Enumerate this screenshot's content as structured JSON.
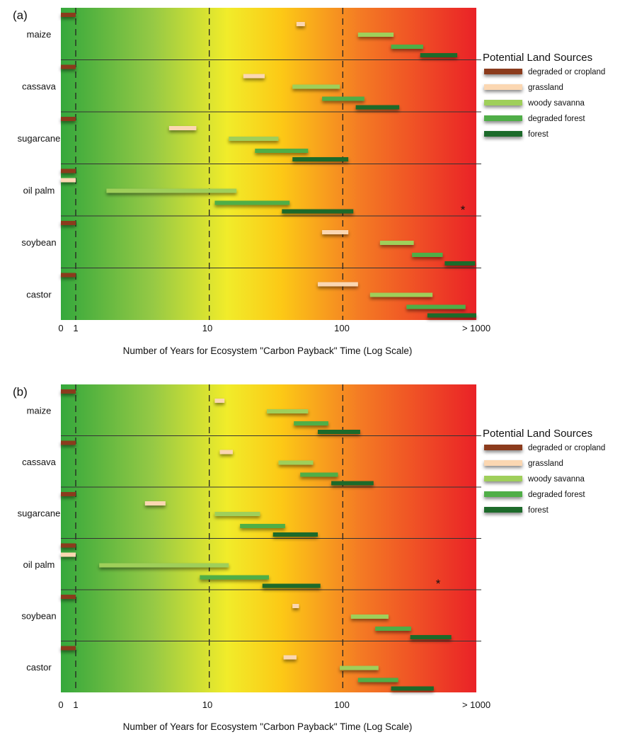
{
  "legend": {
    "title": "Potential Land Sources",
    "items": [
      {
        "label": "degraded or cropland",
        "color": "#8b3a1e"
      },
      {
        "label": "grassland",
        "color": "#fbd7b2"
      },
      {
        "label": "woody savanna",
        "color": "#9fcf5a"
      },
      {
        "label": "degraded forest",
        "color": "#4fae47"
      },
      {
        "label": "forest",
        "color": "#1e6b2a"
      }
    ]
  },
  "chart_data": [
    {
      "type": "bar",
      "panel_label": "(a)",
      "xlabel": "Number of Years for Ecosystem \"Carbon Payback\" Time (Log Scale)",
      "ylabel": "",
      "x_scale": "log",
      "x_ticks": [
        "0",
        "1",
        "10",
        "100",
        "> 1000"
      ],
      "dashed_gridlines_at": [
        1,
        10,
        100
      ],
      "categories": [
        "maize",
        "cassava",
        "sugarcane",
        "oil palm",
        "soybean",
        "castor"
      ],
      "series": [
        {
          "name": "degraded or cropland",
          "ranges": [
            [
              0,
              1
            ],
            [
              0,
              1
            ],
            [
              0,
              1
            ],
            [
              0,
              1
            ],
            [
              0,
              1
            ],
            [
              0,
              1
            ]
          ]
        },
        {
          "name": "grassland",
          "ranges": [
            [
              45,
              52
            ],
            [
              18,
              26
            ],
            [
              5,
              8
            ],
            [
              0,
              1
            ],
            [
              70,
              110
            ],
            [
              65,
              130
            ]
          ]
        },
        {
          "name": "woody savanna",
          "ranges": [
            [
              130,
              240
            ],
            [
              42,
              95
            ],
            [
              14,
              33
            ],
            [
              1.7,
              16
            ],
            [
              190,
              340
            ],
            [
              160,
              470
            ]
          ]
        },
        {
          "name": "degraded forest",
          "ranges": [
            [
              230,
              400
            ],
            [
              70,
              145
            ],
            [
              22,
              55
            ],
            [
              11,
              40
            ],
            [
              330,
              560
            ],
            [
              300,
              830
            ]
          ]
        },
        {
          "name": "forest",
          "ranges": [
            [
              380,
              720
            ],
            [
              125,
              265
            ],
            [
              42,
              110
            ],
            [
              35,
              120
            ],
            [
              580,
              980
            ],
            [
              430,
              1000
            ]
          ]
        }
      ],
      "annotation": {
        "text": "*",
        "category": "oil palm"
      }
    },
    {
      "type": "bar",
      "panel_label": "(b)",
      "xlabel": "Number of Years for Ecosystem \"Carbon Payback\" Time (Log Scale)",
      "ylabel": "",
      "x_scale": "log",
      "x_ticks": [
        "0",
        "1",
        "10",
        "100",
        "> 1000"
      ],
      "dashed_gridlines_at": [
        1,
        10,
        100
      ],
      "categories": [
        "maize",
        "cassava",
        "sugarcane",
        "oil palm",
        "soybean",
        "castor"
      ],
      "series": [
        {
          "name": "degraded or cropland",
          "ranges": [
            [
              0,
              1
            ],
            [
              0,
              1
            ],
            [
              0,
              1
            ],
            [
              0,
              1
            ],
            [
              0,
              1
            ],
            [
              0,
              1
            ]
          ]
        },
        {
          "name": "grassland",
          "ranges": [
            [
              11,
              13
            ],
            [
              12,
              15
            ],
            [
              3.3,
              4.7
            ],
            [
              0,
              1
            ],
            [
              42,
              47
            ],
            [
              36,
              45
            ]
          ]
        },
        {
          "name": "woody savanna",
          "ranges": [
            [
              27,
              55
            ],
            [
              33,
              60
            ],
            [
              11,
              24
            ],
            [
              1.5,
              14
            ],
            [
              115,
              220
            ],
            [
              95,
              185
            ]
          ]
        },
        {
          "name": "degraded forest",
          "ranges": [
            [
              43,
              78
            ],
            [
              48,
              92
            ],
            [
              17,
              37
            ],
            [
              8.5,
              28
            ],
            [
              175,
              325
            ],
            [
              130,
              260
            ]
          ]
        },
        {
          "name": "forest",
          "ranges": [
            [
              65,
              135
            ],
            [
              82,
              170
            ],
            [
              30,
              65
            ],
            [
              25,
              68
            ],
            [
              320,
              650
            ],
            [
              230,
              480
            ]
          ]
        }
      ],
      "annotation": {
        "text": "*",
        "category": "oil palm"
      }
    }
  ]
}
